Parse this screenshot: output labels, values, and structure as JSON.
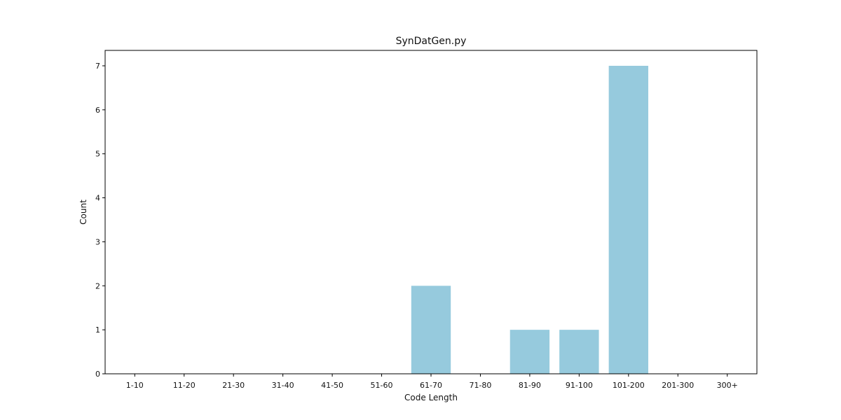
{
  "chart_data": {
    "type": "bar",
    "title": "SynDatGen.py",
    "xlabel": "Code Length",
    "ylabel": "Count",
    "categories": [
      "1-10",
      "11-20",
      "21-30",
      "31-40",
      "41-50",
      "51-60",
      "61-70",
      "71-80",
      "81-90",
      "91-100",
      "101-200",
      "201-300",
      "300+"
    ],
    "values": [
      0,
      0,
      0,
      0,
      0,
      0,
      2,
      0,
      1,
      1,
      7,
      0,
      0
    ],
    "yticks": [
      0,
      1,
      2,
      3,
      4,
      5,
      6,
      7
    ],
    "ylim": [
      0,
      7.35
    ],
    "grid": false,
    "bar_color": "#96cadd"
  }
}
